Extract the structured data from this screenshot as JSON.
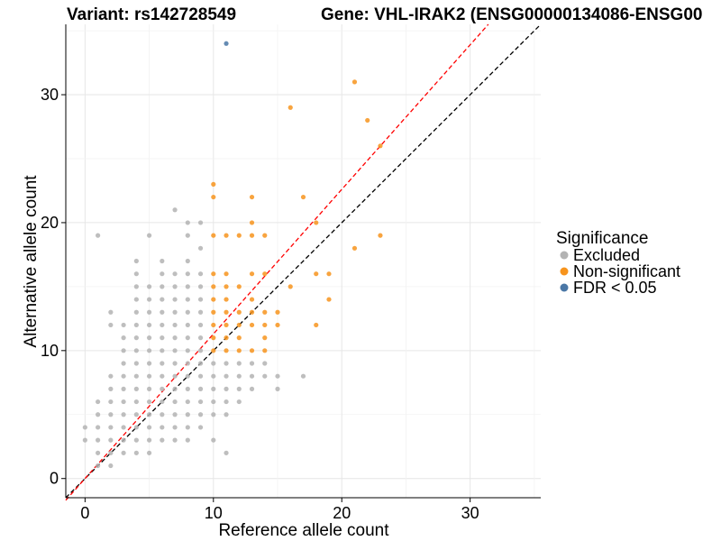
{
  "chart_data": {
    "type": "scatter",
    "title_left": "Variant: rs142728549",
    "title_right": "Gene: VHL-IRAK2 (ENSG00000134086-ENSG00",
    "xlabel": "Reference allele count",
    "ylabel": "Alternative allele count",
    "xlim": [
      -1.5,
      35.5
    ],
    "ylim": [
      -1.5,
      35.5
    ],
    "xticks": [
      0,
      10,
      20,
      30
    ],
    "yticks": [
      0,
      10,
      20,
      30
    ],
    "reference_lines": [
      {
        "name": "identity",
        "slope": 1,
        "intercept": 0,
        "color": "#000000",
        "dash": "dashed"
      },
      {
        "name": "fitted",
        "slope": 1.13,
        "intercept": 0,
        "color": "#ff0000",
        "dash": "dashed"
      }
    ],
    "legend": {
      "title": "Significance",
      "position": "right",
      "entries": [
        {
          "label": "Excluded",
          "color": "#b3b3b3"
        },
        {
          "label": "Non-significant",
          "color": "#f7941d"
        },
        {
          "label": "FDR < 0.05",
          "color": "#4a77a6"
        }
      ]
    },
    "series": [
      {
        "name": "Excluded",
        "color": "#b3b3b3",
        "points": [
          [
            0,
            3
          ],
          [
            0,
            4
          ],
          [
            1,
            1
          ],
          [
            1,
            2
          ],
          [
            1,
            3
          ],
          [
            1,
            4
          ],
          [
            1,
            5
          ],
          [
            1,
            6
          ],
          [
            1,
            19
          ],
          [
            2,
            1
          ],
          [
            2,
            2
          ],
          [
            2,
            3
          ],
          [
            2,
            4
          ],
          [
            2,
            5
          ],
          [
            2,
            6
          ],
          [
            2,
            7
          ],
          [
            2,
            8
          ],
          [
            2,
            12
          ],
          [
            2,
            13
          ],
          [
            3,
            2
          ],
          [
            3,
            3
          ],
          [
            3,
            4
          ],
          [
            3,
            5
          ],
          [
            3,
            6
          ],
          [
            3,
            7
          ],
          [
            3,
            8
          ],
          [
            3,
            9
          ],
          [
            3,
            10
          ],
          [
            3,
            11
          ],
          [
            3,
            12
          ],
          [
            4,
            2
          ],
          [
            4,
            3
          ],
          [
            4,
            4
          ],
          [
            4,
            5
          ],
          [
            4,
            6
          ],
          [
            4,
            7
          ],
          [
            4,
            8
          ],
          [
            4,
            9
          ],
          [
            4,
            10
          ],
          [
            4,
            11
          ],
          [
            4,
            12
          ],
          [
            4,
            13
          ],
          [
            4,
            14
          ],
          [
            4,
            15
          ],
          [
            4,
            16
          ],
          [
            4,
            17
          ],
          [
            5,
            2
          ],
          [
            5,
            3
          ],
          [
            5,
            4
          ],
          [
            5,
            5
          ],
          [
            5,
            6
          ],
          [
            5,
            7
          ],
          [
            5,
            8
          ],
          [
            5,
            9
          ],
          [
            5,
            10
          ],
          [
            5,
            11
          ],
          [
            5,
            12
          ],
          [
            5,
            13
          ],
          [
            5,
            14
          ],
          [
            5,
            15
          ],
          [
            5,
            19
          ],
          [
            6,
            3
          ],
          [
            6,
            4
          ],
          [
            6,
            5
          ],
          [
            6,
            6
          ],
          [
            6,
            7
          ],
          [
            6,
            8
          ],
          [
            6,
            9
          ],
          [
            6,
            10
          ],
          [
            6,
            11
          ],
          [
            6,
            12
          ],
          [
            6,
            13
          ],
          [
            6,
            14
          ],
          [
            6,
            15
          ],
          [
            6,
            16
          ],
          [
            6,
            17
          ],
          [
            7,
            3
          ],
          [
            7,
            4
          ],
          [
            7,
            5
          ],
          [
            7,
            6
          ],
          [
            7,
            7
          ],
          [
            7,
            8
          ],
          [
            7,
            9
          ],
          [
            7,
            10
          ],
          [
            7,
            11
          ],
          [
            7,
            12
          ],
          [
            7,
            13
          ],
          [
            7,
            14
          ],
          [
            7,
            15
          ],
          [
            7,
            16
          ],
          [
            7,
            21
          ],
          [
            8,
            3
          ],
          [
            8,
            4
          ],
          [
            8,
            5
          ],
          [
            8,
            6
          ],
          [
            8,
            7
          ],
          [
            8,
            8
          ],
          [
            8,
            9
          ],
          [
            8,
            10
          ],
          [
            8,
            11
          ],
          [
            8,
            12
          ],
          [
            8,
            13
          ],
          [
            8,
            14
          ],
          [
            8,
            15
          ],
          [
            8,
            16
          ],
          [
            8,
            17
          ],
          [
            8,
            19
          ],
          [
            8,
            20
          ],
          [
            9,
            4
          ],
          [
            9,
            5
          ],
          [
            9,
            6
          ],
          [
            9,
            7
          ],
          [
            9,
            8
          ],
          [
            9,
            9
          ],
          [
            9,
            10
          ],
          [
            9,
            11
          ],
          [
            9,
            12
          ],
          [
            9,
            13
          ],
          [
            9,
            14
          ],
          [
            9,
            15
          ],
          [
            9,
            16
          ],
          [
            9,
            18
          ],
          [
            9,
            20
          ],
          [
            10,
            3
          ],
          [
            10,
            5
          ],
          [
            10,
            6
          ],
          [
            10,
            7
          ],
          [
            10,
            8
          ],
          [
            10,
            9
          ],
          [
            11,
            2
          ],
          [
            11,
            5
          ],
          [
            11,
            6
          ],
          [
            11,
            7
          ],
          [
            11,
            8
          ],
          [
            11,
            9
          ],
          [
            12,
            6
          ],
          [
            12,
            7
          ],
          [
            12,
            8
          ],
          [
            12,
            9
          ],
          [
            13,
            7
          ],
          [
            13,
            8
          ],
          [
            13,
            9
          ],
          [
            14,
            8
          ],
          [
            14,
            9
          ],
          [
            15,
            7
          ],
          [
            15,
            8
          ],
          [
            17,
            8
          ]
        ]
      },
      {
        "name": "Non-significant",
        "color": "#f7941d",
        "points": [
          [
            10,
            10
          ],
          [
            10,
            11
          ],
          [
            10,
            12
          ],
          [
            10,
            13
          ],
          [
            10,
            14
          ],
          [
            10,
            15
          ],
          [
            10,
            16
          ],
          [
            10,
            19
          ],
          [
            10,
            22
          ],
          [
            10,
            23
          ],
          [
            11,
            10
          ],
          [
            11,
            11
          ],
          [
            11,
            12
          ],
          [
            11,
            13
          ],
          [
            11,
            14
          ],
          [
            11,
            15
          ],
          [
            11,
            16
          ],
          [
            11,
            19
          ],
          [
            12,
            10
          ],
          [
            12,
            11
          ],
          [
            12,
            12
          ],
          [
            12,
            13
          ],
          [
            12,
            15
          ],
          [
            12,
            19
          ],
          [
            13,
            10
          ],
          [
            13,
            12
          ],
          [
            13,
            13
          ],
          [
            13,
            14
          ],
          [
            13,
            16
          ],
          [
            13,
            19
          ],
          [
            13,
            20
          ],
          [
            13,
            22
          ],
          [
            14,
            10
          ],
          [
            14,
            11
          ],
          [
            14,
            12
          ],
          [
            14,
            13
          ],
          [
            14,
            16
          ],
          [
            14,
            19
          ],
          [
            15,
            12
          ],
          [
            15,
            13
          ],
          [
            16,
            15
          ],
          [
            16,
            29
          ],
          [
            17,
            22
          ],
          [
            18,
            12
          ],
          [
            18,
            16
          ],
          [
            18,
            20
          ],
          [
            19,
            14
          ],
          [
            19,
            16
          ],
          [
            21,
            18
          ],
          [
            21,
            31
          ],
          [
            22,
            28
          ],
          [
            23,
            19
          ],
          [
            23,
            26
          ]
        ]
      },
      {
        "name": "FDR < 0.05",
        "color": "#4a77a6",
        "points": [
          [
            11,
            34
          ]
        ]
      }
    ]
  }
}
